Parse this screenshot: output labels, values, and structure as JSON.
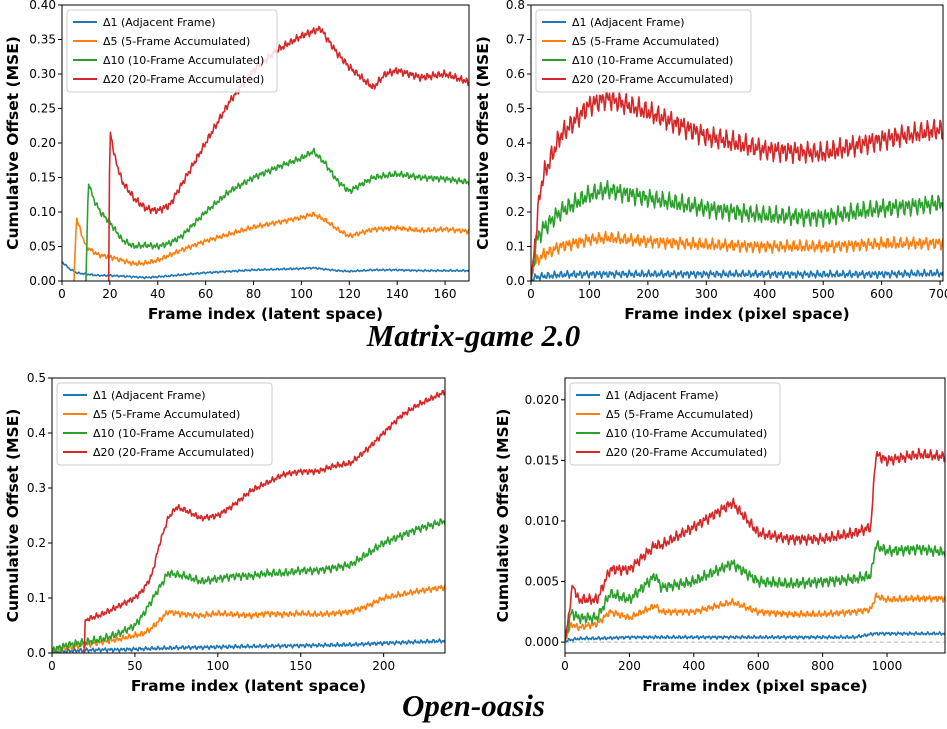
{
  "figure": {
    "captions": [
      "Matrix-game 2.0",
      "Open-oasis"
    ]
  },
  "chart_data": [
    {
      "id": "mg-latent",
      "type": "line",
      "xlabel": "Frame index (latent space)",
      "ylabel": "Cumulative Offset (MSE)",
      "xlim": [
        0,
        170
      ],
      "ylim": [
        0,
        0.4
      ],
      "xticks": [
        0,
        20,
        40,
        60,
        80,
        100,
        120,
        140,
        160
      ],
      "xtick_labels": [
        "0",
        "20",
        "40",
        "60",
        "80",
        "100",
        "120",
        "140",
        "160"
      ],
      "yticks": [
        0,
        0.05,
        0.1,
        0.15,
        0.2,
        0.25,
        0.3,
        0.35,
        0.4
      ],
      "ytick_labels": [
        "0.00",
        "0.05",
        "0.10",
        "0.15",
        "0.20",
        "0.25",
        "0.30",
        "0.35",
        "0.40"
      ],
      "legend_position": "top-left",
      "series": [
        {
          "name": "Δ1 (Adjacent Frame)",
          "color": "#1f77b4",
          "x": [
            0,
            3,
            6,
            10,
            15,
            20,
            25,
            30,
            35,
            40,
            50,
            60,
            70,
            80,
            90,
            100,
            105,
            110,
            115,
            120,
            130,
            140,
            150,
            160,
            170
          ],
          "y": [
            0.028,
            0.018,
            0.012,
            0.01,
            0.008,
            0.008,
            0.007,
            0.006,
            0.005,
            0.006,
            0.009,
            0.012,
            0.014,
            0.016,
            0.017,
            0.018,
            0.019,
            0.017,
            0.015,
            0.014,
            0.016,
            0.016,
            0.015,
            0.015,
            0.015
          ]
        },
        {
          "name": "Δ5 (5-Frame Accumulated)",
          "color": "#ff7f0e",
          "x": [
            5,
            6,
            8,
            10,
            15,
            20,
            25,
            30,
            35,
            40,
            50,
            60,
            70,
            80,
            90,
            100,
            105,
            110,
            115,
            120,
            130,
            140,
            150,
            160,
            170
          ],
          "y": [
            0,
            0.092,
            0.07,
            0.05,
            0.038,
            0.035,
            0.03,
            0.025,
            0.026,
            0.03,
            0.045,
            0.058,
            0.068,
            0.078,
            0.085,
            0.092,
            0.097,
            0.088,
            0.075,
            0.065,
            0.075,
            0.077,
            0.073,
            0.075,
            0.072
          ]
        },
        {
          "name": "Δ10 (10-Frame Accumulated)",
          "color": "#2ca02c",
          "x": [
            10,
            11,
            13,
            16,
            20,
            25,
            30,
            35,
            40,
            45,
            50,
            60,
            70,
            80,
            90,
            100,
            105,
            110,
            115,
            120,
            130,
            140,
            150,
            160,
            170
          ],
          "y": [
            0,
            0.145,
            0.12,
            0.1,
            0.085,
            0.06,
            0.05,
            0.052,
            0.05,
            0.055,
            0.065,
            0.1,
            0.13,
            0.15,
            0.165,
            0.178,
            0.188,
            0.17,
            0.145,
            0.13,
            0.15,
            0.155,
            0.15,
            0.148,
            0.143
          ]
        },
        {
          "name": "Δ20 (20-Frame Accumulated)",
          "color": "#d62728",
          "x": [
            19.5,
            20,
            22,
            25,
            30,
            35,
            40,
            45,
            50,
            60,
            70,
            80,
            90,
            100,
            108,
            110,
            115,
            120,
            125,
            130,
            135,
            140,
            150,
            160,
            170
          ],
          "y": [
            0,
            0.22,
            0.18,
            0.145,
            0.12,
            0.105,
            0.102,
            0.11,
            0.14,
            0.2,
            0.26,
            0.305,
            0.335,
            0.355,
            0.366,
            0.355,
            0.33,
            0.31,
            0.295,
            0.28,
            0.3,
            0.305,
            0.295,
            0.3,
            0.288
          ]
        }
      ]
    },
    {
      "id": "mg-pixel",
      "type": "line",
      "xlabel": "Frame index (pixel space)",
      "ylabel": "Cumulative Offset (MSE)",
      "xlim": [
        0,
        705
      ],
      "ylim": [
        0,
        0.8
      ],
      "xticks": [
        0,
        100,
        200,
        300,
        400,
        500,
        600,
        700
      ],
      "xtick_labels": [
        "0",
        "100",
        "200",
        "300",
        "400",
        "500",
        "600",
        "700"
      ],
      "yticks": [
        0,
        0.1,
        0.2,
        0.3,
        0.4,
        0.5,
        0.6,
        0.7,
        0.8
      ],
      "ytick_labels": [
        "0.0",
        "0.1",
        "0.2",
        "0.3",
        "0.4",
        "0.5",
        "0.6",
        "0.7",
        "0.8"
      ],
      "legend_position": "top-left",
      "series": [
        {
          "name": "Δ1 (Adjacent Frame)",
          "color": "#1f77b4",
          "x": [
            0,
            10,
            50,
            100,
            150,
            200,
            300,
            400,
            500,
            600,
            705
          ],
          "y": [
            0.005,
            0.012,
            0.018,
            0.02,
            0.02,
            0.02,
            0.02,
            0.02,
            0.019,
            0.02,
            0.022
          ]
        },
        {
          "name": "Δ5 (5-Frame Accumulated)",
          "color": "#ff7f0e",
          "x": [
            0,
            5,
            20,
            50,
            100,
            130,
            200,
            300,
            400,
            500,
            600,
            705
          ],
          "y": [
            0,
            0.05,
            0.075,
            0.1,
            0.12,
            0.125,
            0.115,
            0.105,
            0.1,
            0.1,
            0.108,
            0.11
          ]
        },
        {
          "name": "Δ10 (10-Frame Accumulated)",
          "color": "#2ca02c",
          "x": [
            0,
            10,
            20,
            50,
            100,
            130,
            200,
            300,
            400,
            500,
            600,
            705
          ],
          "y": [
            0,
            0.12,
            0.15,
            0.2,
            0.25,
            0.265,
            0.24,
            0.21,
            0.19,
            0.185,
            0.21,
            0.225
          ]
        },
        {
          "name": "Δ20 (20-Frame Accumulated)",
          "color": "#d62728",
          "x": [
            0,
            15,
            20,
            50,
            100,
            130,
            200,
            300,
            400,
            500,
            600,
            705
          ],
          "y": [
            0,
            0.25,
            0.3,
            0.42,
            0.51,
            0.53,
            0.49,
            0.42,
            0.38,
            0.37,
            0.41,
            0.44
          ]
        }
      ]
    },
    {
      "id": "oo-latent",
      "type": "line",
      "xlabel": "Frame index (latent space)",
      "ylabel": "Cumulative Offset (MSE)",
      "xlim": [
        0,
        237
      ],
      "ylim": [
        0,
        0.5
      ],
      "xticks": [
        0,
        50,
        100,
        150,
        200
      ],
      "xtick_labels": [
        "0",
        "50",
        "100",
        "150",
        "200"
      ],
      "yticks": [
        0,
        0.1,
        0.2,
        0.3,
        0.4,
        0.5
      ],
      "ytick_labels": [
        "0.0",
        "0.1",
        "0.2",
        "0.3",
        "0.4",
        "0.5"
      ],
      "legend_position": "top-left",
      "series": [
        {
          "name": "Δ1 (Adjacent Frame)",
          "color": "#1f77b4",
          "x": [
            0,
            10,
            20,
            30,
            40,
            50,
            60,
            70,
            80,
            90,
            100,
            120,
            140,
            160,
            180,
            200,
            220,
            237
          ],
          "y": [
            0.002,
            0.004,
            0.005,
            0.006,
            0.006,
            0.007,
            0.008,
            0.009,
            0.01,
            0.01,
            0.011,
            0.012,
            0.013,
            0.014,
            0.015,
            0.018,
            0.02,
            0.022
          ]
        },
        {
          "name": "Δ5 (5-Frame Accumulated)",
          "color": "#ff7f0e",
          "x": [
            0,
            10,
            20,
            30,
            40,
            50,
            55,
            60,
            65,
            70,
            80,
            90,
            100,
            110,
            120,
            130,
            140,
            150,
            160,
            170,
            180,
            190,
            200,
            220,
            237
          ],
          "y": [
            0.005,
            0.01,
            0.015,
            0.02,
            0.025,
            0.032,
            0.035,
            0.045,
            0.06,
            0.075,
            0.07,
            0.068,
            0.072,
            0.07,
            0.068,
            0.072,
            0.07,
            0.072,
            0.07,
            0.072,
            0.075,
            0.085,
            0.1,
            0.112,
            0.12
          ]
        },
        {
          "name": "Δ10 (10-Frame Accumulated)",
          "color": "#2ca02c",
          "x": [
            0,
            10,
            20,
            30,
            40,
            50,
            55,
            60,
            65,
            70,
            80,
            90,
            100,
            110,
            120,
            130,
            140,
            150,
            160,
            170,
            180,
            190,
            200,
            220,
            237
          ],
          "y": [
            0.005,
            0.015,
            0.02,
            0.025,
            0.035,
            0.05,
            0.07,
            0.095,
            0.12,
            0.145,
            0.14,
            0.13,
            0.135,
            0.14,
            0.14,
            0.145,
            0.145,
            0.15,
            0.15,
            0.155,
            0.16,
            0.18,
            0.2,
            0.225,
            0.24
          ]
        },
        {
          "name": "Δ20 (20-Frame Accumulated)",
          "color": "#d62728",
          "x": [
            19.5,
            20,
            30,
            40,
            50,
            55,
            60,
            65,
            70,
            75,
            80,
            90,
            100,
            110,
            120,
            130,
            140,
            150,
            160,
            170,
            180,
            190,
            200,
            210,
            220,
            237
          ],
          "y": [
            0,
            0.06,
            0.07,
            0.085,
            0.1,
            0.115,
            0.14,
            0.2,
            0.245,
            0.265,
            0.26,
            0.245,
            0.25,
            0.27,
            0.295,
            0.31,
            0.325,
            0.33,
            0.33,
            0.34,
            0.345,
            0.37,
            0.4,
            0.43,
            0.45,
            0.475
          ]
        }
      ]
    },
    {
      "id": "oo-pixel",
      "type": "line",
      "xlabel": "Frame index (pixel space)",
      "ylabel": "Cumulative Offset (MSE)",
      "xlim": [
        0,
        1180
      ],
      "ylim": [
        -0.0009,
        0.0218
      ],
      "xticks": [
        0,
        200,
        400,
        600,
        800,
        1000
      ],
      "xtick_labels": [
        "0",
        "200",
        "400",
        "600",
        "800",
        "1000"
      ],
      "yticks": [
        0,
        0.005,
        0.01,
        0.015,
        0.02
      ],
      "ytick_labels": [
        "0.000",
        "0.005",
        "0.010",
        "0.015",
        "0.020"
      ],
      "reference_line": 0,
      "legend_position": "top-left",
      "series": [
        {
          "name": "Δ1 (Adjacent Frame)",
          "color": "#1f77b4",
          "x": [
            0,
            20,
            50,
            100,
            200,
            300,
            400,
            500,
            600,
            700,
            800,
            900,
            960,
            1000,
            1100,
            1180
          ],
          "y": [
            0.0001,
            0.0002,
            0.0003,
            0.0003,
            0.0004,
            0.0004,
            0.0004,
            0.0004,
            0.0004,
            0.0004,
            0.0004,
            0.0004,
            0.0007,
            0.0007,
            0.0007,
            0.0007
          ]
        },
        {
          "name": "Δ5 (5-Frame Accumulated)",
          "color": "#ff7f0e",
          "x": [
            0,
            20,
            40,
            100,
            140,
            200,
            280,
            300,
            400,
            520,
            600,
            700,
            800,
            900,
            950,
            965,
            1000,
            1100,
            1180
          ],
          "y": [
            0.0001,
            0.0015,
            0.0012,
            0.0015,
            0.0025,
            0.002,
            0.003,
            0.0025,
            0.0025,
            0.0033,
            0.0025,
            0.0023,
            0.0023,
            0.0025,
            0.0027,
            0.0038,
            0.0035,
            0.0036,
            0.0036
          ]
        },
        {
          "name": "Δ10 (10-Frame Accumulated)",
          "color": "#2ca02c",
          "x": [
            0,
            20,
            40,
            100,
            140,
            200,
            280,
            300,
            400,
            520,
            600,
            700,
            800,
            900,
            950,
            965,
            1000,
            1100,
            1180
          ],
          "y": [
            0.0001,
            0.0025,
            0.002,
            0.002,
            0.004,
            0.0035,
            0.0055,
            0.0045,
            0.005,
            0.0065,
            0.005,
            0.0048,
            0.005,
            0.0052,
            0.0055,
            0.008,
            0.0075,
            0.0077,
            0.0074
          ]
        },
        {
          "name": "Δ20 (20-Frame Accumulated)",
          "color": "#d62728",
          "x": [
            0,
            25,
            40,
            100,
            140,
            200,
            280,
            300,
            400,
            520,
            600,
            700,
            800,
            900,
            950,
            965,
            1000,
            1100,
            1180
          ],
          "y": [
            0.0001,
            0.0048,
            0.0035,
            0.0035,
            0.006,
            0.006,
            0.008,
            0.008,
            0.0095,
            0.0115,
            0.009,
            0.0085,
            0.0085,
            0.009,
            0.0095,
            0.0155,
            0.015,
            0.0155,
            0.0153
          ]
        }
      ]
    }
  ]
}
